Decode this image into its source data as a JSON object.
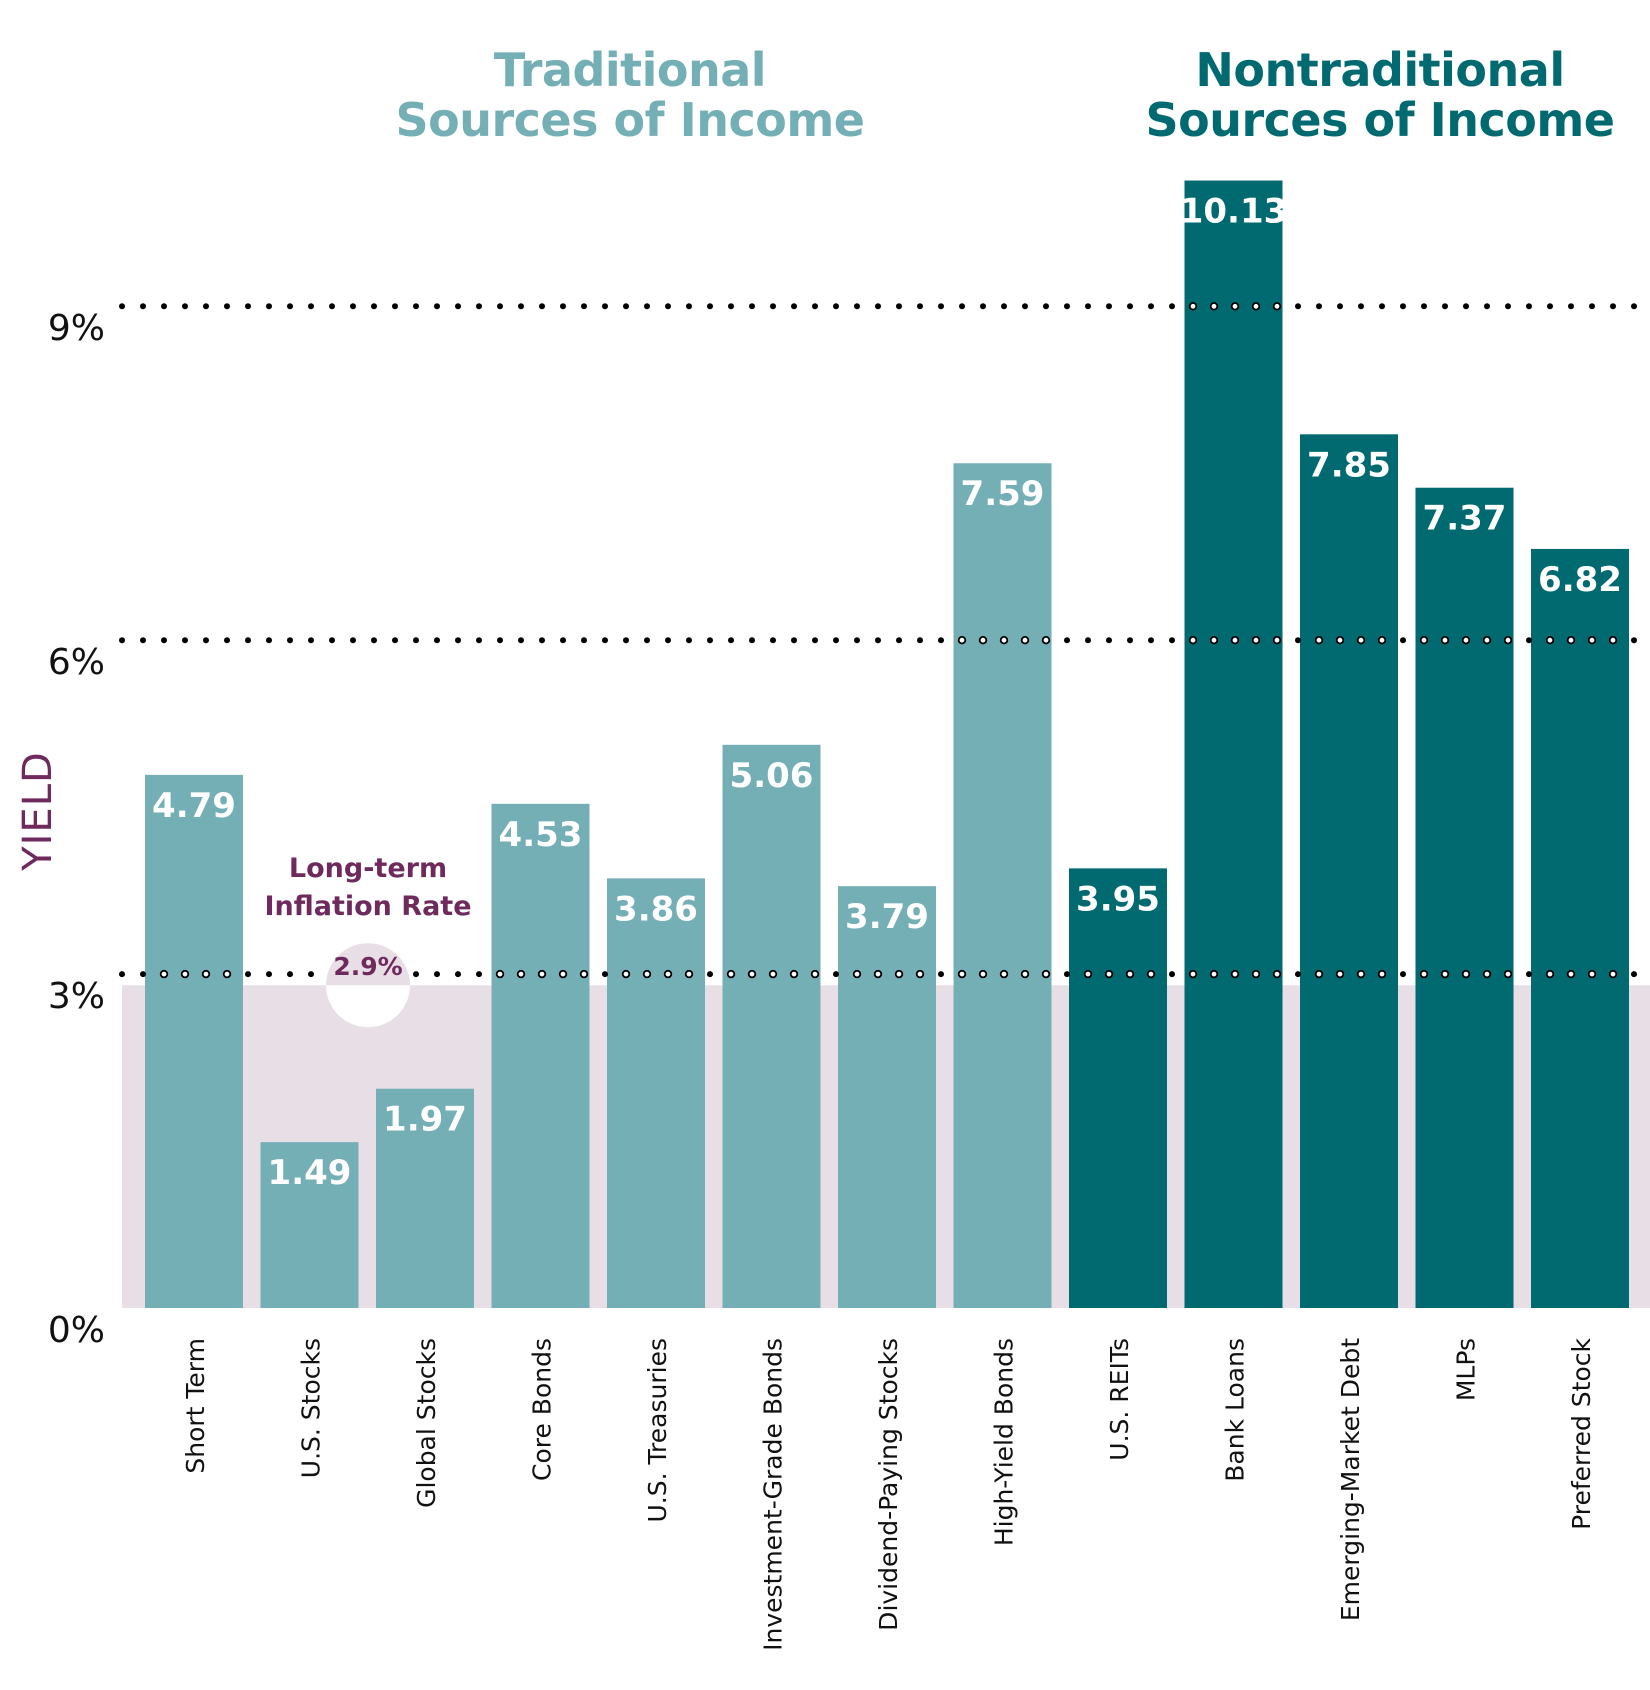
{
  "chart_data": {
    "type": "bar",
    "title": "",
    "group_titles": {
      "traditional": [
        "Traditional",
        "Sources of Income"
      ],
      "nontraditional": [
        "Nontraditional",
        "Sources of Income"
      ]
    },
    "ylabel": "YIELD",
    "xlabel": "",
    "ylim": [
      0,
      10.5
    ],
    "yticks": [
      0,
      3,
      6,
      9
    ],
    "ytick_labels": [
      "0%",
      "3%",
      "6%",
      "9%"
    ],
    "grid": "dotted lines at 3%, 6%, 9%",
    "categories": [
      "Short Term",
      "U.S. Stocks",
      "Global Stocks",
      "Core Bonds",
      "U.S. Treasuries",
      "Investment-Grade Bonds",
      "Dividend-Paying Stocks",
      "High-Yield Bonds",
      "U.S. REITs",
      "Bank Loans",
      "Emerging-Market Debt",
      "MLPs",
      "Preferred Stock"
    ],
    "values": [
      4.79,
      1.49,
      1.97,
      4.53,
      3.86,
      5.06,
      3.79,
      7.59,
      3.95,
      10.13,
      7.85,
      7.37,
      6.82
    ],
    "value_labels": [
      "4.79",
      "1.49",
      "1.97",
      "4.53",
      "3.86",
      "5.06",
      "3.79",
      "7.59",
      "3.95",
      "10.13",
      "7.85",
      "7.37",
      "6.82"
    ],
    "groups": [
      "traditional",
      "traditional",
      "traditional",
      "traditional",
      "traditional",
      "traditional",
      "traditional",
      "traditional",
      "nontraditional",
      "nontraditional",
      "nontraditional",
      "nontraditional",
      "nontraditional"
    ],
    "reference_band": {
      "label": [
        "Long-term",
        "Inflation Rate"
      ],
      "value": 2.9,
      "value_label": "2.9%"
    },
    "colors": {
      "traditional": "#74afb6",
      "nontraditional": "#006a70",
      "inflation_band": "#e8dfe6",
      "inflation_text": "#6e2a5c",
      "bar_value_text": "#ffffff",
      "grid_dots": "#000000"
    }
  }
}
